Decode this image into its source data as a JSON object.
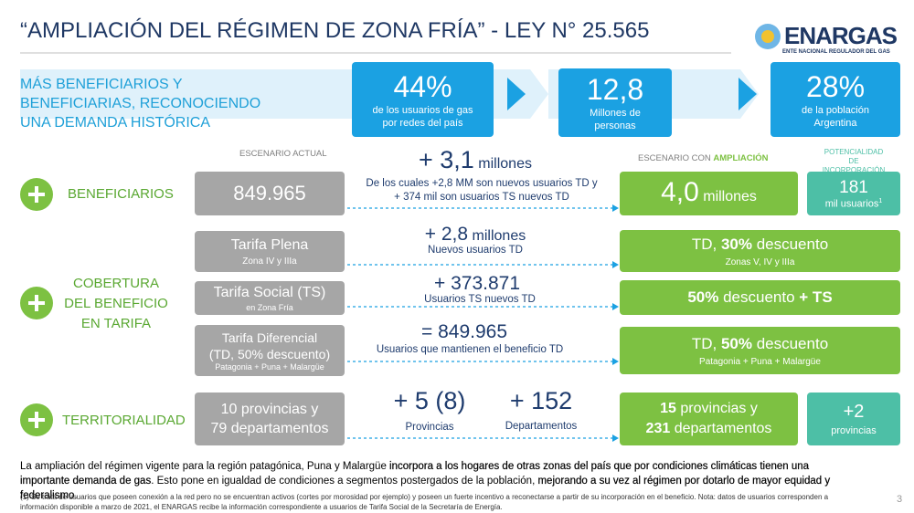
{
  "header": {
    "title": "“AMPLIACIÓN DEL RÉGIMEN DE ZONA FRÍA” - LEY N° 25.565"
  },
  "logo": {
    "name": "ENARGAS",
    "subtitle": "ENTE NACIONAL REGULADOR DEL GAS"
  },
  "intro": [
    "MÁS BENEFICIARIOS Y",
    "BENEFICIARIAS, RECONOCIENDO",
    "UNA DEMANDA HISTÓRICA"
  ],
  "kpis": [
    {
      "value": "44%",
      "text": [
        "de  los usuarios de gas",
        "por redes del país"
      ]
    },
    {
      "value": "12,8",
      "text": [
        "Millones de",
        "personas"
      ]
    },
    {
      "value": "28%",
      "text": [
        "de la población",
        "Argentina"
      ]
    }
  ],
  "columns": {
    "current": "ESCENARIO ACTUAL",
    "future": [
      "ESCENARIO CON ",
      "AMPLIACIÓN"
    ],
    "potential": [
      "POTENCIALIDAD DE",
      "INCORPORACIÓN"
    ]
  },
  "beneficiarios": {
    "label": "BENEFICIARIOS",
    "current": "849.965",
    "delta": "+ 3,1",
    "delta_unit": "millones",
    "note": [
      "De los cuales +2,8 MM son nuevos usuarios TD y",
      "+ 374 mil son usuarios TS nuevos TD"
    ],
    "future": "4,0",
    "future_unit": "millones",
    "potential": "181",
    "potential_unit": "mil usuarios",
    "potential_note": "1"
  },
  "cobertura": {
    "label": [
      "COBERTURA",
      "DEL BENEFICIO",
      "EN TARIFA"
    ],
    "items": [
      {
        "name": [
          "Tarifa Plena"
        ],
        "sub": "Zona IV y IIIa",
        "delta": "+ 2,8",
        "delta_unit": "millones",
        "note": "Nuevos usuarios TD",
        "future": [
          "TD, ",
          "30%",
          " descuento"
        ],
        "future_sub": "Zonas V, IV y IIIa"
      },
      {
        "name": [
          "Tarifa Social (TS)"
        ],
        "sub": "en Zona Fría",
        "delta": "+ 373.871",
        "note": "Usuarios TS nuevos TD",
        "future": [
          "50%",
          " descuento ",
          "+ TS"
        ]
      },
      {
        "name": [
          "Tarifa Diferencial",
          "(TD, 50% descuento)"
        ],
        "sub": "Patagonia + Puna + Malargüe",
        "delta": "= 849.965",
        "note": "Usuarios que mantienen el beneficio TD",
        "future": [
          "TD, ",
          "50%",
          " descuento"
        ],
        "future_sub": "Patagonia + Puna + Malargüe"
      }
    ]
  },
  "territorialidad": {
    "label": "TERRITORIALIDAD",
    "current": [
      "10 provincias y",
      "79 departamentos"
    ],
    "delta_provinces": "+ 5 (8)",
    "delta_provinces_label": "Provincias",
    "delta_departments": "+ 152",
    "delta_departments_label": "Departamentos",
    "future": [
      "15",
      " provincias y",
      "231",
      " departamentos"
    ],
    "potential": "+2",
    "potential_label": "provincias"
  },
  "footer": {
    "text": [
      "La ampliación del régimen vigente para la región patagónica, Puna y Malargüe ",
      "incorpora a los hogares de otras zonas del país que por condiciones climáticas tienen una importante demanda de gas",
      ". Esto pone en igualdad de condiciones a segmentos postergados de la población, ",
      "mejorando a su vez al régimen por dotarlo de mayor equidad y federalismo",
      "."
    ],
    "footnote": "(1) Se trata de usuarios que poseen conexión a la red pero no se encuentran activos (cortes por morosidad por ejemplo) y poseen un fuerte incentivo a reconectarse a partir de su incorporación en el beneficio. Nota:  datos de usuarios corresponden a información disponible a marzo de 2021, el ENARGAS recibe la información correspondiente a usuarios de Tarifa Social de la Secretaría de Energía.",
    "page": "3"
  }
}
